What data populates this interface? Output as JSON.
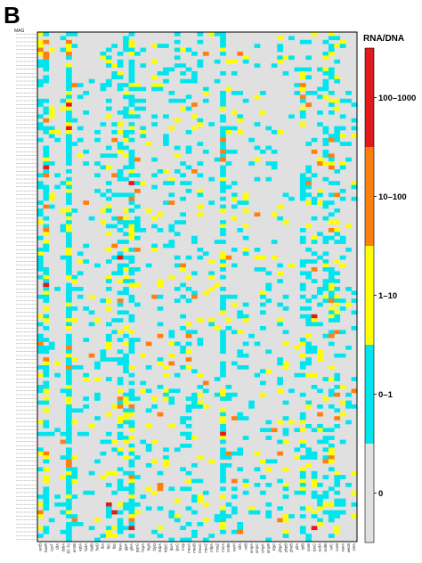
{
  "panel_label": "B",
  "chart_data": {
    "type": "heatmap",
    "title": "",
    "ylabel": "MAG",
    "legend": {
      "title": "RNA/DNA",
      "placement": "right",
      "bins": [
        {
          "label": "100–1000",
          "color": "#e31a1c"
        },
        {
          "label": "10–100",
          "color": "#ff7f0e"
        },
        {
          "label": "1–10",
          "color": "#ffff00"
        },
        {
          "label": "0–1",
          "color": "#00e5ee"
        },
        {
          "label": "0",
          "color": "#e0e0e0"
        }
      ]
    },
    "rows": 130,
    "columns": [
      "acrB",
      "basR",
      "cysT",
      "clfA",
      "dsbA",
      "EF-Tu",
      "emrB",
      "eptA",
      "fadA",
      "fadB",
      "fadJ",
      "fliA",
      "fliC",
      "fliG",
      "fusA",
      "glpF",
      "glnA",
      "gspG",
      "hcpA",
      "hlyB",
      "hlyD",
      "kdpA",
      "kdpC",
      "lpxA",
      "lpxC",
      "mcp",
      "mexA",
      "mexB",
      "mexC",
      "mexZ",
      "mfpA",
      "mraZ",
      "mrcA",
      "mrdB",
      "narH",
      "nifA",
      "nirB",
      "ompA",
      "ompC",
      "ompF",
      "ompR",
      "PBP",
      "pbpA",
      "pbpB",
      "phoB",
      "pilA",
      "rplB",
      "rpoB",
      "rpoC",
      "sodA",
      "sodB",
      "tolC",
      "tonB",
      "vanA",
      "wecB",
      "zntA"
    ],
    "column_density": [
      0.42,
      0.55,
      0.1,
      0.08,
      0.12,
      0.95,
      0.15,
      0.1,
      0.08,
      0.06,
      0.1,
      0.15,
      0.35,
      0.2,
      0.45,
      0.5,
      0.62,
      0.18,
      0.15,
      0.12,
      0.1,
      0.15,
      0.2,
      0.18,
      0.14,
      0.2,
      0.28,
      0.18,
      0.22,
      0.15,
      0.12,
      0.1,
      0.68,
      0.2,
      0.18,
      0.12,
      0.14,
      0.1,
      0.12,
      0.08,
      0.1,
      0.12,
      0.18,
      0.15,
      0.1,
      0.12,
      0.35,
      0.3,
      0.25,
      0.28,
      0.3,
      0.42,
      0.35,
      0.2,
      0.12,
      0.1
    ]
  }
}
